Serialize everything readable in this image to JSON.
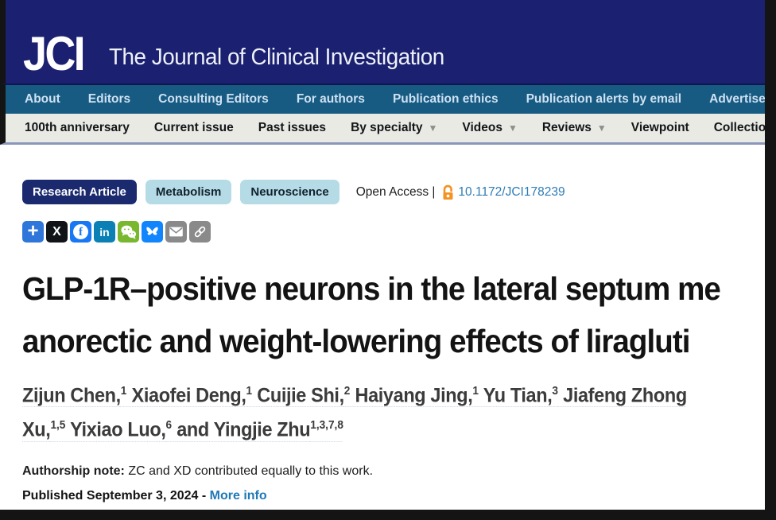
{
  "masthead": {
    "logo": "JCI",
    "journal_name": "The Journal of Clinical Investigation"
  },
  "nav_primary": {
    "items": [
      "About",
      "Editors",
      "Consulting Editors",
      "For authors",
      "Publication ethics",
      "Publication alerts by email",
      "Advertise"
    ]
  },
  "nav_secondary": {
    "items": [
      {
        "label": "100th anniversary",
        "caret": false
      },
      {
        "label": "Current issue",
        "caret": false
      },
      {
        "label": "Past issues",
        "caret": false
      },
      {
        "label": "By specialty",
        "caret": true
      },
      {
        "label": "Videos",
        "caret": true
      },
      {
        "label": "Reviews",
        "caret": true
      },
      {
        "label": "Viewpoint",
        "caret": false
      },
      {
        "label": "Collections",
        "caret": false
      }
    ]
  },
  "article": {
    "badges": {
      "type": "Research Article",
      "category_1": "Metabolism",
      "category_2": "Neuroscience"
    },
    "access": {
      "label": "Open Access |",
      "doi": "10.1172/JCI178239"
    },
    "share_icons": [
      "share-plus",
      "x-twitter",
      "facebook",
      "linkedin",
      "wechat",
      "bluesky",
      "email",
      "copy-link"
    ],
    "title_line1": "GLP-1R–positive neurons in the lateral septum me",
    "title_line2": "anorectic and weight-lowering effects of liragluti",
    "authors_line1": [
      {
        "name": "Zijun Chen,",
        "sup": "1"
      },
      {
        "name": "Xiaofei Deng,",
        "sup": "1"
      },
      {
        "name": "Cuijie Shi,",
        "sup": "2"
      },
      {
        "name": "Haiyang Jing,",
        "sup": "1"
      },
      {
        "name": "Yu Tian,",
        "sup": "3"
      },
      {
        "name": "Jiafeng Zhong",
        "sup": ""
      }
    ],
    "authors_line2": [
      {
        "name": "Xu,",
        "sup": "1,5"
      },
      {
        "name": "Yixiao Luo,",
        "sup": "6"
      },
      {
        "name": "and Yingjie Zhu",
        "sup": "1,3,7,8"
      }
    ],
    "authorship_note_label": "Authorship note:",
    "authorship_note_text": " ZC and XD contributed equally to this work.",
    "published_text": "Published September 3, 2024 - ",
    "more_info_label": "More info"
  },
  "colors": {
    "masthead_navy": "#1b2170",
    "nav_teal": "#175a82",
    "nav_gray": "#e8eae3",
    "badge_navy": "#1b2a6e",
    "badge_light_blue": "#b5dbe6",
    "link_blue": "#2e7cb6",
    "open_access_orange": "#f39324",
    "x_black": "#101418",
    "facebook_blue": "#1877f2",
    "linkedin_blue": "#0a80b5",
    "wechat_green": "#78b72e",
    "bluesky_blue": "#1185fe",
    "icon_gray": "#8a8a8a"
  }
}
